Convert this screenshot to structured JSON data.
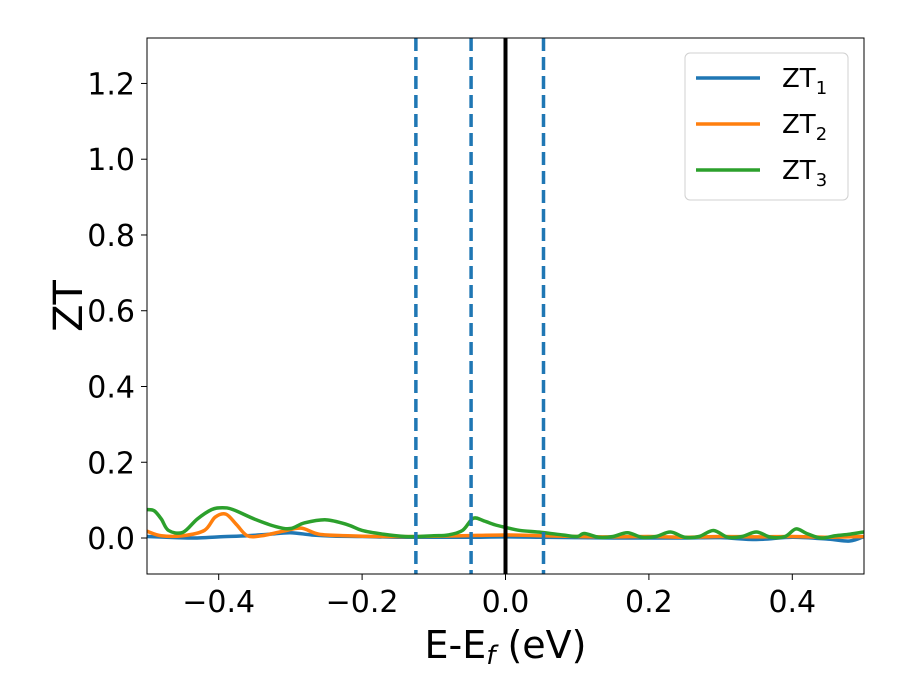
{
  "chart_data": {
    "type": "line",
    "title": "",
    "xlabel": {
      "main": "E-E",
      "sub": "f",
      "unit": " (eV)"
    },
    "ylabel": "ZT",
    "xlim": [
      -0.5,
      0.5
    ],
    "ylim": [
      -0.095,
      1.32
    ],
    "x_ticks": [
      -0.4,
      -0.2,
      0.0,
      0.2,
      0.4
    ],
    "x_tick_labels": [
      "−0.4",
      "−0.2",
      "0.0",
      "0.2",
      "0.4"
    ],
    "y_ticks": [
      0.0,
      0.2,
      0.4,
      0.6,
      0.8,
      1.0,
      1.2
    ],
    "y_tick_labels": [
      "0.0",
      "0.2",
      "0.4",
      "0.6",
      "0.8",
      "1.0",
      "1.2"
    ],
    "grid": false,
    "legend_position": "top-right",
    "vertical_lines": [
      {
        "x": -0.125,
        "style": "dashed",
        "color": "#1f77b4"
      },
      {
        "x": -0.048,
        "style": "dashed",
        "color": "#1f77b4"
      },
      {
        "x": 0.0,
        "style": "solid",
        "color": "#000000"
      },
      {
        "x": 0.053,
        "style": "dashed",
        "color": "#1f77b4"
      }
    ],
    "series": [
      {
        "name": "ZT",
        "sub": "1",
        "color": "#1f77b4",
        "x": [
          -0.5,
          -0.46,
          -0.43,
          -0.4,
          -0.36,
          -0.33,
          -0.3,
          -0.27,
          -0.24,
          -0.2,
          -0.15,
          -0.1,
          -0.05,
          0.0,
          0.05,
          0.1,
          0.15,
          0.2,
          0.25,
          0.3,
          0.35,
          0.4,
          0.45,
          0.48,
          0.5
        ],
        "y": [
          0.004,
          0.001,
          0.0,
          0.003,
          0.006,
          0.01,
          0.014,
          0.008,
          0.005,
          0.004,
          0.002,
          0.002,
          0.002,
          0.003,
          0.002,
          0.001,
          0.0,
          0.0,
          0.0,
          0.001,
          -0.004,
          0.002,
          -0.003,
          -0.008,
          0.004
        ]
      },
      {
        "name": "ZT",
        "sub": "2",
        "color": "#ff7f0e",
        "x": [
          -0.5,
          -0.48,
          -0.45,
          -0.42,
          -0.405,
          -0.39,
          -0.375,
          -0.36,
          -0.34,
          -0.31,
          -0.285,
          -0.26,
          -0.22,
          -0.18,
          -0.12,
          -0.06,
          0.0,
          0.05,
          0.1,
          0.15,
          0.2,
          0.25,
          0.3,
          0.35,
          0.4,
          0.45,
          0.5
        ],
        "y": [
          0.018,
          0.006,
          0.006,
          0.02,
          0.055,
          0.063,
          0.035,
          0.006,
          0.006,
          0.018,
          0.026,
          0.01,
          0.006,
          0.004,
          0.004,
          0.006,
          0.008,
          0.006,
          0.004,
          0.003,
          0.004,
          0.002,
          0.004,
          0.003,
          0.004,
          0.002,
          0.004
        ]
      },
      {
        "name": "ZT",
        "sub": "3",
        "color": "#2ca02c",
        "x": [
          -0.5,
          -0.49,
          -0.48,
          -0.47,
          -0.45,
          -0.43,
          -0.41,
          -0.395,
          -0.38,
          -0.35,
          -0.32,
          -0.3,
          -0.28,
          -0.25,
          -0.22,
          -0.2,
          -0.17,
          -0.14,
          -0.12,
          -0.1,
          -0.08,
          -0.06,
          -0.045,
          -0.03,
          -0.015,
          0.0,
          0.02,
          0.05,
          0.08,
          0.1,
          0.11,
          0.13,
          0.15,
          0.17,
          0.19,
          0.21,
          0.23,
          0.25,
          0.27,
          0.29,
          0.31,
          0.33,
          0.35,
          0.37,
          0.39,
          0.405,
          0.42,
          0.44,
          0.46,
          0.48,
          0.5
        ],
        "y": [
          0.075,
          0.072,
          0.05,
          0.02,
          0.015,
          0.05,
          0.075,
          0.08,
          0.075,
          0.05,
          0.03,
          0.025,
          0.04,
          0.048,
          0.035,
          0.02,
          0.01,
          0.004,
          0.004,
          0.006,
          0.008,
          0.02,
          0.052,
          0.045,
          0.035,
          0.028,
          0.02,
          0.015,
          0.008,
          0.004,
          0.012,
          0.002,
          0.004,
          0.014,
          0.002,
          0.004,
          0.016,
          0.002,
          0.004,
          0.02,
          0.002,
          0.004,
          0.016,
          0.002,
          0.004,
          0.024,
          0.012,
          0.0,
          0.006,
          0.01,
          0.016
        ]
      }
    ]
  }
}
